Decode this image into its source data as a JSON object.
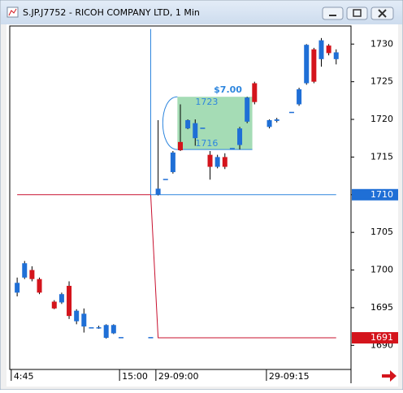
{
  "chart_data": {
    "type": "candlestick",
    "title": "S.JP.J7752 - RICOH COMPANY LTD, 1 Min",
    "x": [
      0,
      1,
      2,
      3,
      5,
      6,
      7,
      8,
      9,
      10,
      11,
      12,
      13,
      14,
      18,
      19,
      20,
      21,
      22,
      23,
      24,
      25,
      26,
      27,
      28,
      29,
      30,
      31,
      32,
      34,
      35,
      37,
      38,
      39,
      40,
      41,
      42,
      43
    ],
    "open": [
      1697.0,
      1699.0,
      1700.0,
      1698.8,
      1695.8,
      1695.7,
      1697.9,
      1693.2,
      1692.5,
      1692.4,
      1692.4,
      1691.0,
      1691.6,
      1691.1,
      1691.1,
      1710.0,
      1712.1,
      1713.0,
      1717.0,
      1718.8,
      1717.5,
      1718.9,
      1715.3,
      1713.7,
      1715.0,
      1716.2,
      1716.6,
      1719.7,
      1724.8,
      1719.0,
      1719.8,
      1721.0,
      1722.0,
      1724.8,
      1729.3,
      1728.0,
      1729.8,
      1728.0
    ],
    "high": [
      1699.0,
      1701.2,
      1700.5,
      1699.0,
      1696.0,
      1697.0,
      1698.5,
      1694.8,
      1694.9,
      1692.4,
      1692.6,
      1692.8,
      1692.8,
      1691.1,
      1691.1,
      1719.9,
      1712.1,
      1715.8,
      1722.0,
      1720.0,
      1720.0,
      1718.9,
      1715.8,
      1715.3,
      1715.5,
      1716.2,
      1719.0,
      1723.0,
      1725.0,
      1720.0,
      1720.2,
      1721.0,
      1724.2,
      1730.0,
      1729.5,
      1730.8,
      1730.0,
      1729.3
    ],
    "low": [
      1696.5,
      1698.8,
      1698.5,
      1696.8,
      1694.8,
      1695.5,
      1693.5,
      1692.8,
      1691.7,
      1692.4,
      1692.2,
      1690.9,
      1691.5,
      1691.1,
      1691.1,
      1709.9,
      1712.1,
      1712.8,
      1715.8,
      1718.7,
      1716.5,
      1718.9,
      1712.0,
      1713.5,
      1713.4,
      1716.2,
      1716.0,
      1719.5,
      1722.0,
      1718.8,
      1719.6,
      1721.0,
      1721.8,
      1724.6,
      1724.8,
      1727.0,
      1728.5,
      1727.3
    ],
    "close": [
      1698.3,
      1700.9,
      1698.8,
      1697.0,
      1694.9,
      1696.8,
      1693.9,
      1694.6,
      1694.2,
      1692.4,
      1692.4,
      1692.7,
      1692.7,
      1691.1,
      1691.1,
      1710.8,
      1712.1,
      1715.6,
      1715.9,
      1719.9,
      1719.5,
      1718.9,
      1713.7,
      1715.0,
      1713.7,
      1716.2,
      1718.8,
      1722.9,
      1722.3,
      1719.9,
      1720.0,
      1721.0,
      1724.0,
      1729.9,
      1725.0,
      1730.5,
      1728.8,
      1728.9
    ],
    "up_color": "#1f6fd6",
    "down_color": "#d4141c",
    "lines": [
      {
        "color": "#c8102e",
        "x": [
          0,
          18,
          19,
          43
        ],
        "values": [
          1710,
          1710,
          1691,
          1691
        ]
      },
      {
        "color": "#2e86de",
        "x": [
          18,
          18,
          43
        ],
        "values": [
          1732,
          1710,
          1710
        ]
      }
    ],
    "price_tags": [
      {
        "value": 1710,
        "color": "#1f6fd6"
      },
      {
        "value": 1691,
        "color": "#d4141c"
      }
    ],
    "range_box": {
      "x": [
        21.6,
        31.7
      ],
      "y": [
        1716,
        1723
      ],
      "label": "$7.00"
    },
    "xlim": [
      -1,
      45
    ],
    "ylim": [
      1686.8,
      1732.4
    ],
    "xticks": [
      {
        "value": -0.8,
        "label": "4:45"
      },
      {
        "value": 13.8,
        "label": "15:00"
      },
      {
        "value": 18.7,
        "label": "29-09:00"
      },
      {
        "value": 33.6,
        "label": "29-09:15"
      }
    ],
    "yticks": [
      1690,
      1695,
      1700,
      1705,
      1710,
      1715,
      1720,
      1725,
      1730
    ]
  }
}
